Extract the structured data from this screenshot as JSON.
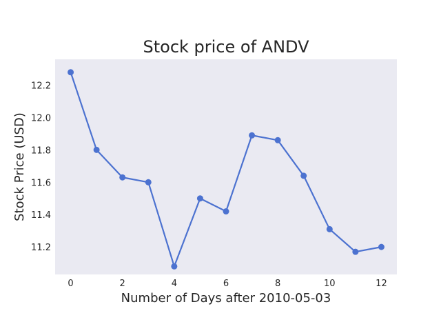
{
  "chart_data": {
    "type": "line",
    "title": "Stock price of ANDV",
    "xlabel": "Number of Days after 2010-05-03",
    "ylabel": "Stock Price (USD)",
    "x": [
      0,
      1,
      2,
      3,
      4,
      5,
      6,
      7,
      8,
      9,
      10,
      11,
      12
    ],
    "series": [
      {
        "values": [
          12.28,
          11.8,
          11.63,
          11.6,
          11.08,
          11.5,
          11.42,
          11.89,
          11.86,
          11.64,
          11.31,
          11.17,
          11.2
        ]
      }
    ],
    "xlim": [
      -0.6,
      12.6
    ],
    "ylim": [
      11.03,
      12.36
    ],
    "xticks": [
      "0",
      "2",
      "4",
      "6",
      "8",
      "10",
      "12"
    ],
    "yticks": [
      "11.2",
      "11.4",
      "11.6",
      "11.8",
      "12.0",
      "12.2"
    ],
    "grid": false,
    "colors": {
      "line": "#4c72d0",
      "plot_background": "#eaeaf2",
      "text": "#262626"
    }
  }
}
